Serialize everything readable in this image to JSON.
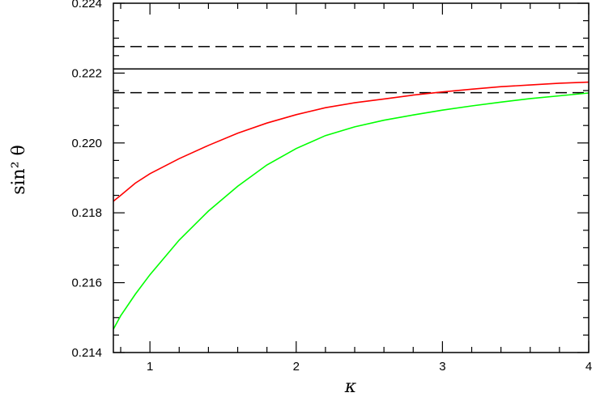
{
  "chart_data": {
    "type": "line",
    "xlabel": "κ",
    "ylabel": "sin² θ",
    "xlim": [
      0.75,
      4
    ],
    "ylim": [
      0.214,
      0.224
    ],
    "x_ticks": [
      1,
      2,
      3,
      4
    ],
    "x_tick_labels": [
      "1",
      "2",
      "3",
      "4"
    ],
    "y_ticks": [
      0.214,
      0.216,
      0.218,
      0.22,
      0.222,
      0.224
    ],
    "y_tick_labels": [
      "0.214",
      "0.216",
      "0.218",
      "0.220",
      "0.222",
      "0.224"
    ],
    "grid": false,
    "reference_lines": [
      {
        "style": "dashed",
        "color": "#000000",
        "y": 0.22276
      },
      {
        "style": "solid",
        "color": "#000000",
        "y": 0.22212
      },
      {
        "style": "dashed",
        "color": "#000000",
        "y": 0.22144
      }
    ],
    "series": [
      {
        "color": "#ff0000",
        "x": [
          0.75,
          0.8,
          0.9,
          1.0,
          1.2,
          1.4,
          1.6,
          1.8,
          2.0,
          2.2,
          2.4,
          2.6,
          2.8,
          3.0,
          3.2,
          3.4,
          3.6,
          3.8,
          4.0
        ],
        "y": [
          0.21833,
          0.2185,
          0.21885,
          0.21912,
          0.21955,
          0.21993,
          0.22028,
          0.22057,
          0.22081,
          0.22101,
          0.22115,
          0.22126,
          0.22137,
          0.22146,
          0.22154,
          0.22161,
          0.22166,
          0.22171,
          0.22174
        ]
      },
      {
        "color": "#00ff00",
        "x": [
          0.75,
          0.8,
          0.9,
          1.0,
          1.2,
          1.4,
          1.6,
          1.8,
          2.0,
          2.2,
          2.4,
          2.6,
          2.8,
          3.0,
          3.2,
          3.4,
          3.6,
          3.8,
          4.0
        ],
        "y": [
          0.21467,
          0.21505,
          0.21567,
          0.21623,
          0.21722,
          0.21805,
          0.21876,
          0.21937,
          0.21984,
          0.22021,
          0.22046,
          0.22065,
          0.2208,
          0.22094,
          0.22106,
          0.22117,
          0.22127,
          0.22135,
          0.22143
        ]
      }
    ]
  }
}
